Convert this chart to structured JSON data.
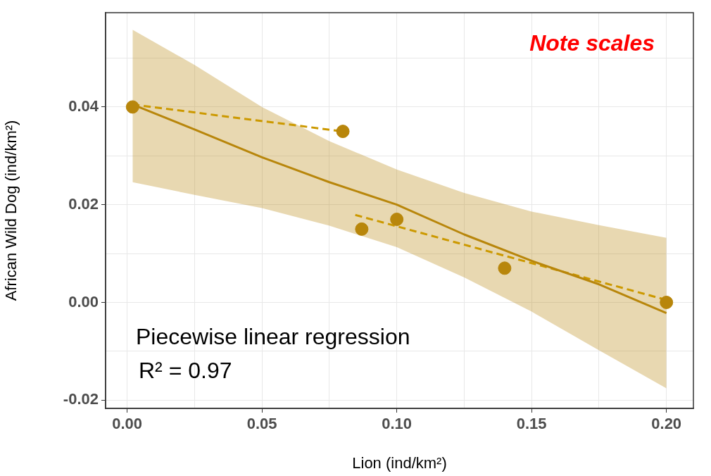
{
  "chart_data": {
    "type": "scatter",
    "xlabel": "Lion (ind/km²)",
    "ylabel": "African Wild Dog (ind/km²)",
    "annotations": [
      "Note scales",
      "Piecewise linear regression",
      "R² = 0.97"
    ],
    "xlim": [
      -0.008,
      0.21
    ],
    "ylim": [
      -0.0217,
      0.0593
    ],
    "xticks": [
      {
        "value": 0,
        "label": "0.00"
      },
      {
        "value": 0.025,
        "label": null
      },
      {
        "value": 0.05,
        "label": "0.05"
      },
      {
        "value": 0.075,
        "label": null
      },
      {
        "value": 0.1,
        "label": "0.10"
      },
      {
        "value": 0.125,
        "label": null
      },
      {
        "value": 0.15,
        "label": "0.15"
      },
      {
        "value": 0.175,
        "label": null
      },
      {
        "value": 0.2,
        "label": "0.20"
      }
    ],
    "yticks": [
      {
        "value": -0.02,
        "label": "-0.02"
      },
      {
        "value": -0.01,
        "label": null
      },
      {
        "value": 0,
        "label": "0.00"
      },
      {
        "value": 0.01,
        "label": null
      },
      {
        "value": 0.02,
        "label": "0.02"
      },
      {
        "value": 0.03,
        "label": null
      },
      {
        "value": 0.04,
        "label": "0.04"
      },
      {
        "value": 0.05,
        "label": null
      }
    ],
    "grid": true,
    "series": [
      {
        "color": "#b8860b",
        "marker": "circle",
        "x": [
          0.002,
          0.08,
          0.087,
          0.1,
          0.14,
          0.2
        ],
        "values": [
          0.04,
          0.035,
          0.015,
          0.017,
          0.007,
          0.0
        ]
      },
      {
        "type": "line",
        "color": "#b8860b",
        "marker": "none",
        "line_style": "solid",
        "x": [
          0.002,
          0.025,
          0.05,
          0.075,
          0.1,
          0.125,
          0.15,
          0.175,
          0.2
        ],
        "values": [
          0.0405,
          0.0354,
          0.0297,
          0.0246,
          0.02,
          0.0139,
          0.0085,
          0.0037,
          -0.0022
        ],
        "lower": [
          0.0246,
          0.022,
          0.0193,
          0.0157,
          0.0113,
          0.0051,
          -0.0019,
          -0.0098,
          -0.0176
        ],
        "upper": [
          0.0558,
          0.0486,
          0.04,
          0.033,
          0.0272,
          0.0224,
          0.0186,
          0.0158,
          0.0132
        ]
      },
      {
        "type": "line",
        "color": "#cc9900",
        "marker": "none",
        "line_style": "dashed",
        "x": [
          0.002,
          0.08
        ],
        "values": [
          0.0405,
          0.035
        ]
      },
      {
        "type": "line",
        "color": "#cc9900",
        "marker": "none",
        "line_style": "dashed",
        "x": [
          0.0846,
          0.2
        ],
        "values": [
          0.0179,
          0.0005
        ]
      }
    ]
  }
}
